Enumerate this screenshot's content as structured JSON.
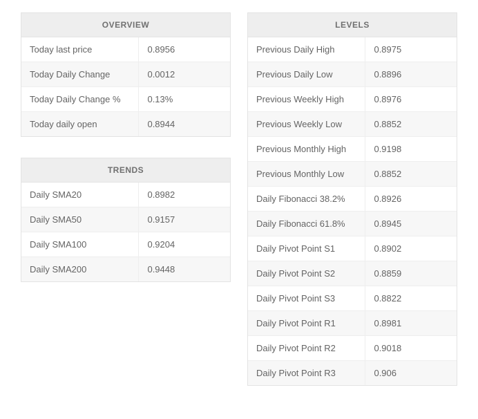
{
  "overview": {
    "title": "OVERVIEW",
    "rows": [
      {
        "label": "Today last price",
        "value": "0.8956"
      },
      {
        "label": "Today Daily Change",
        "value": "0.0012"
      },
      {
        "label": "Today Daily Change %",
        "value": "0.13%"
      },
      {
        "label": "Today daily open",
        "value": "0.8944"
      }
    ]
  },
  "trends": {
    "title": "TRENDS",
    "rows": [
      {
        "label": "Daily SMA20",
        "value": "0.8982"
      },
      {
        "label": "Daily SMA50",
        "value": "0.9157"
      },
      {
        "label": "Daily SMA100",
        "value": "0.9204"
      },
      {
        "label": "Daily SMA200",
        "value": "0.9448"
      }
    ]
  },
  "levels": {
    "title": "LEVELS",
    "rows": [
      {
        "label": "Previous Daily High",
        "value": "0.8975"
      },
      {
        "label": "Previous Daily Low",
        "value": "0.8896"
      },
      {
        "label": "Previous Weekly High",
        "value": "0.8976"
      },
      {
        "label": "Previous Weekly Low",
        "value": "0.8852"
      },
      {
        "label": "Previous Monthly High",
        "value": "0.9198"
      },
      {
        "label": "Previous Monthly Low",
        "value": "0.8852"
      },
      {
        "label": "Daily Fibonacci 38.2%",
        "value": "0.8926"
      },
      {
        "label": "Daily Fibonacci 61.8%",
        "value": "0.8945"
      },
      {
        "label": "Daily Pivot Point S1",
        "value": "0.8902"
      },
      {
        "label": "Daily Pivot Point S2",
        "value": "0.8859"
      },
      {
        "label": "Daily Pivot Point S3",
        "value": "0.8822"
      },
      {
        "label": "Daily Pivot Point R1",
        "value": "0.8981"
      },
      {
        "label": "Daily Pivot Point R2",
        "value": "0.9018"
      },
      {
        "label": "Daily Pivot Point R3",
        "value": "0.906"
      }
    ]
  }
}
